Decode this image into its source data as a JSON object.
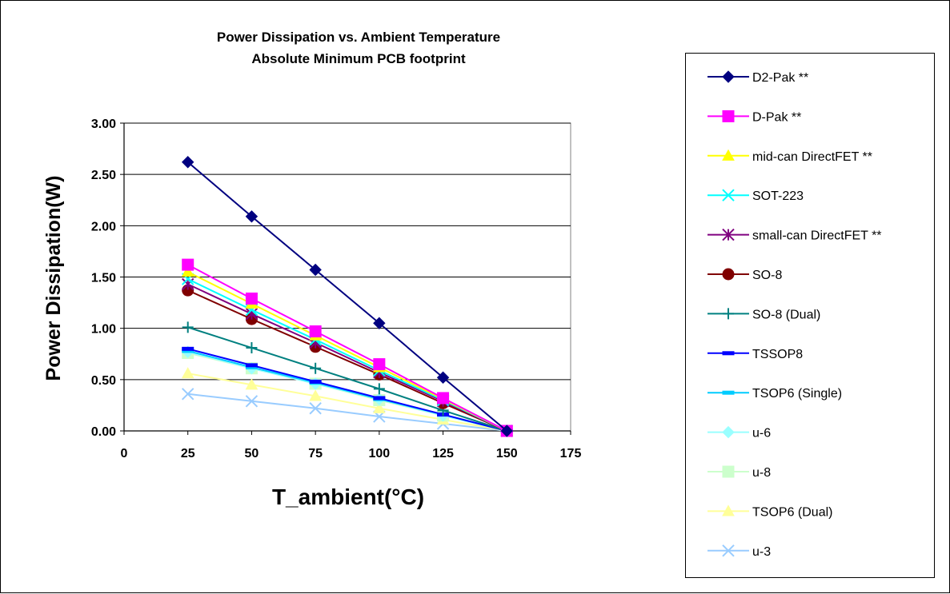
{
  "chart_data": {
    "type": "line",
    "title": "Power Dissipation vs. Ambient Temperature",
    "subtitle": "Absolute Minimum PCB footprint",
    "xlabel": "T_ambient(°C)",
    "ylabel": "Power Dissipation(W)",
    "xlim": [
      0,
      175
    ],
    "ylim": [
      0,
      3
    ],
    "x_ticks": [
      "0",
      "25",
      "50",
      "75",
      "100",
      "125",
      "150",
      "175"
    ],
    "y_ticks": [
      "0.00",
      "0.50",
      "1.00",
      "1.50",
      "2.00",
      "2.50",
      "3.00"
    ],
    "grid": "horizontal",
    "legend_position": "right",
    "x": [
      25,
      50,
      75,
      100,
      125,
      150
    ],
    "series": [
      {
        "name": "D2-Pak **",
        "color": "#000080",
        "marker": "diamond",
        "values": [
          2.62,
          2.09,
          1.57,
          1.05,
          0.52,
          0.0
        ]
      },
      {
        "name": "D-Pak **",
        "color": "#FF00FF",
        "marker": "square",
        "values": [
          1.62,
          1.29,
          0.97,
          0.65,
          0.32,
          0.0
        ]
      },
      {
        "name": "mid-can DirectFET **",
        "color": "#FFFF00",
        "marker": "triangle",
        "values": [
          1.55,
          1.24,
          0.93,
          0.62,
          0.31,
          0.0
        ]
      },
      {
        "name": "SOT-223",
        "color": "#00FFFF",
        "marker": "x",
        "values": [
          1.48,
          1.18,
          0.89,
          0.59,
          0.3,
          0.0
        ]
      },
      {
        "name": "small-can DirectFET **",
        "color": "#800080",
        "marker": "star",
        "values": [
          1.43,
          1.14,
          0.86,
          0.57,
          0.29,
          0.0
        ]
      },
      {
        "name": "SO-8",
        "color": "#800000",
        "marker": "circle",
        "values": [
          1.37,
          1.09,
          0.82,
          0.55,
          0.27,
          0.0
        ]
      },
      {
        "name": "SO-8 (Dual)",
        "color": "#008080",
        "marker": "plus",
        "values": [
          1.01,
          0.81,
          0.61,
          0.41,
          0.2,
          0.0
        ]
      },
      {
        "name": "TSSOP8",
        "color": "#0000FF",
        "marker": "dash",
        "values": [
          0.8,
          0.64,
          0.48,
          0.32,
          0.16,
          0.0
        ]
      },
      {
        "name": "TSOP6 (Single)",
        "color": "#00CCFF",
        "marker": "dash",
        "values": [
          0.78,
          0.62,
          0.47,
          0.31,
          0.16,
          0.0
        ]
      },
      {
        "name": "u-6",
        "color": "#99FFFF",
        "marker": "diamond",
        "values": [
          0.77,
          0.61,
          0.46,
          0.31,
          0.15,
          0.0
        ]
      },
      {
        "name": "u-8",
        "color": "#CCFFCC",
        "marker": "square",
        "values": [
          0.76,
          0.61,
          0.46,
          0.3,
          0.15,
          0.0
        ]
      },
      {
        "name": "TSOP6 (Dual)",
        "color": "#FFFF99",
        "marker": "triangle",
        "values": [
          0.56,
          0.45,
          0.34,
          0.22,
          0.11,
          0.0
        ]
      },
      {
        "name": "u-3",
        "color": "#99CCFF",
        "marker": "x",
        "values": [
          0.36,
          0.29,
          0.22,
          0.14,
          0.07,
          0.0
        ]
      }
    ]
  }
}
